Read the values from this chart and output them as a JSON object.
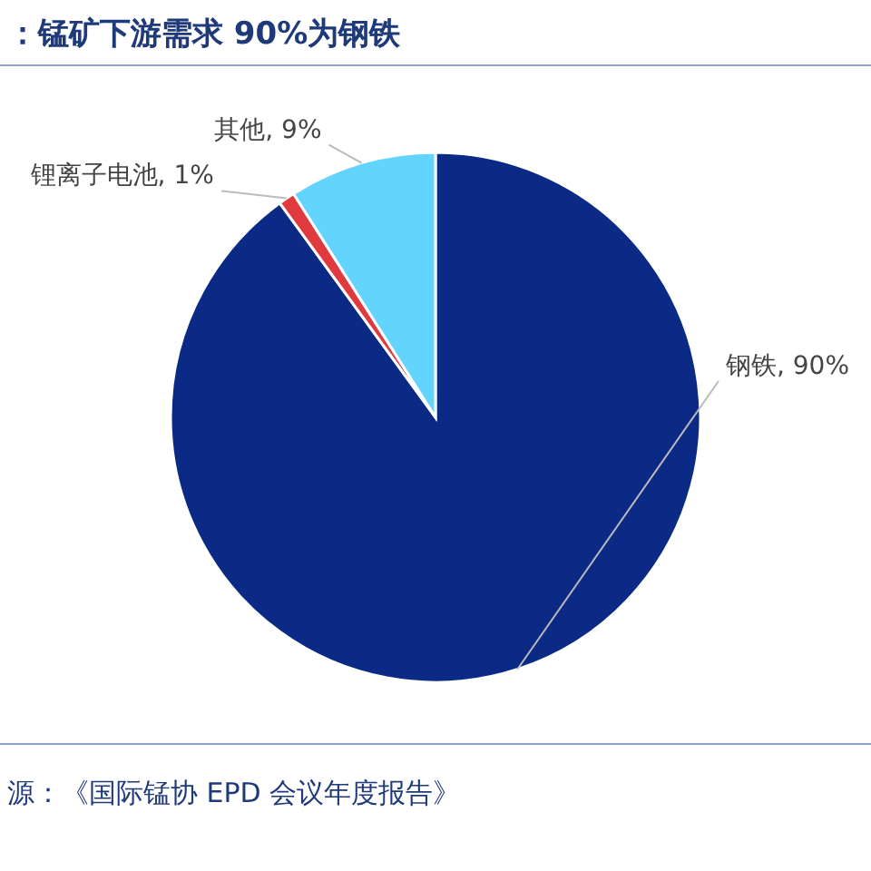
{
  "chart_data": {
    "type": "pie",
    "title": "：锰矿下游需求 90%为钢铁",
    "categories": [
      "钢铁",
      "锂离子电池",
      "其他"
    ],
    "value_labels": [
      "90%",
      "1%",
      "9%"
    ],
    "values": [
      90,
      1,
      9
    ],
    "colors": [
      "#0a2a86",
      "#e0393e",
      "#62d4fd"
    ],
    "annotations": [
      "源：《国际锰协 EPD 会议年度报告》"
    ]
  }
}
